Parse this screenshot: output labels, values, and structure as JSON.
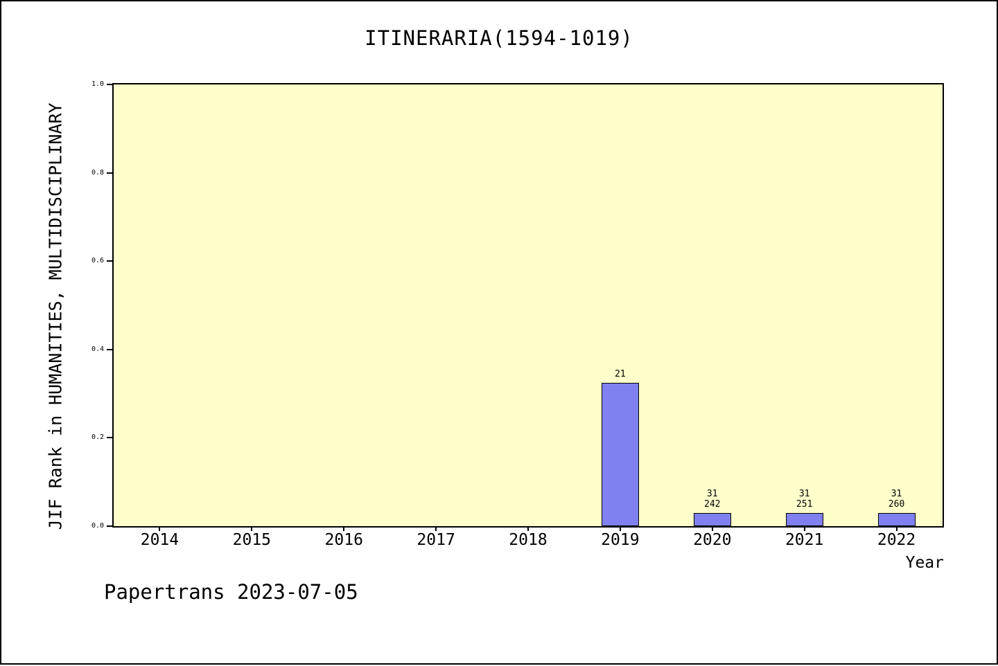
{
  "page": {
    "footer": "Papertrans 2023-07-05"
  },
  "chart_data": {
    "type": "bar",
    "title": "ITINERARIA(1594-1019)",
    "xlabel": "Year",
    "ylabel": "JIF Rank in HUMANITIES, MULTIDISCIPLINARY",
    "categories": [
      "2014",
      "2015",
      "2016",
      "2017",
      "2018",
      "2019",
      "2020",
      "2021",
      "2022"
    ],
    "values": [
      0,
      0,
      0,
      0,
      0,
      0.325,
      0.03,
      0.03,
      0.03
    ],
    "bar_annotations": [
      [],
      [],
      [],
      [],
      [],
      [
        "21"
      ],
      [
        "31",
        "242"
      ],
      [
        "31",
        "251"
      ],
      [
        "31",
        "260"
      ]
    ],
    "ylim": [
      0,
      1
    ],
    "yticks": [
      0.0,
      0.2,
      0.4,
      0.6,
      0.8,
      1.0
    ],
    "grid": false,
    "legend": null,
    "colors": {
      "bar_fill": "#8080f0",
      "bar_edge": "#000000",
      "plot_background": "#ffffcc",
      "page_background": "#ffffff",
      "text": "#000000"
    }
  }
}
